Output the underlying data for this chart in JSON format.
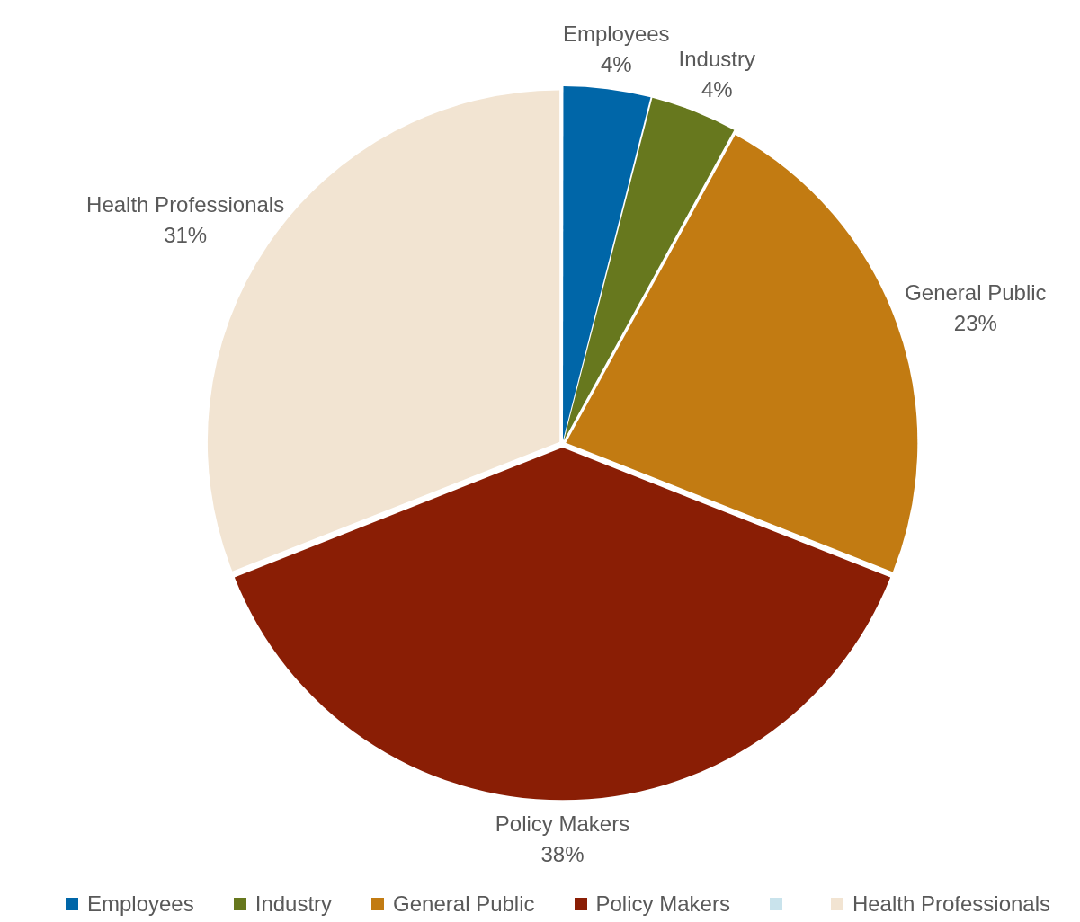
{
  "chart_data": {
    "type": "pie",
    "categories": [
      "Employees",
      "Industry",
      "General Public",
      "Policy Makers",
      null,
      "Health Professionals"
    ],
    "values": [
      4,
      4,
      23,
      38,
      0,
      31
    ],
    "colors": [
      "#0066a8",
      "#67781e",
      "#c27b12",
      "#8a1e05",
      "#c9e3ec",
      "#f2e4d2"
    ],
    "value_labels": [
      "4%",
      "4%",
      "23%",
      "38%",
      null,
      "31%"
    ],
    "legend": "bottom"
  }
}
